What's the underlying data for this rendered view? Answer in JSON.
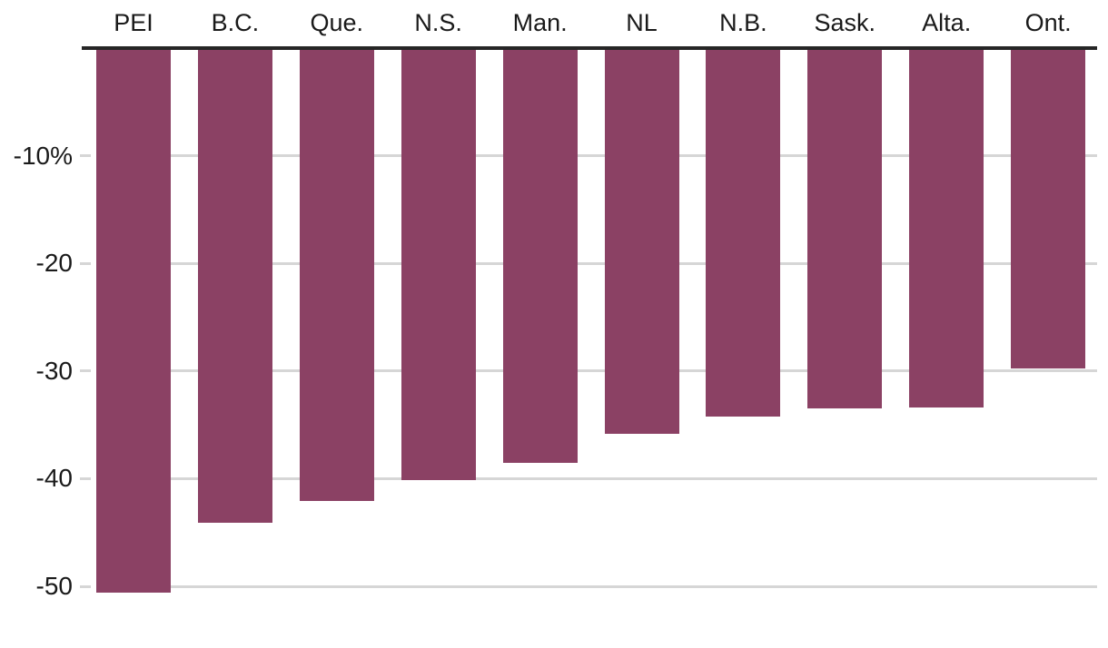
{
  "chart_data": {
    "type": "bar",
    "categories": [
      "PEI",
      "B.C.",
      "Que.",
      "N.S.",
      "Man.",
      "NL",
      "N.B.",
      "Sask.",
      "Alta.",
      "Ont."
    ],
    "values": [
      -50.6,
      -44.1,
      -42.1,
      -40.1,
      -38.5,
      -35.8,
      -34.2,
      -33.5,
      -33.4,
      -29.8
    ],
    "value_unit": "%",
    "y_axis": {
      "ticks": [
        {
          "value": -10,
          "label": "-10%"
        },
        {
          "value": -20,
          "label": "-20"
        },
        {
          "value": -30,
          "label": "-30"
        },
        {
          "value": -40,
          "label": "-40"
        },
        {
          "value": -50,
          "label": "-50"
        }
      ],
      "range": [
        -55,
        0
      ],
      "grid": true
    },
    "x_axis": {
      "labels_position": "top",
      "baseline_value": 0
    },
    "legend": null,
    "colors": {
      "bar": "#8B4164",
      "axis_line": "#262626",
      "gridline": "#d6d6d6",
      "label": "#1a1a1a",
      "background": "#ffffff"
    }
  }
}
